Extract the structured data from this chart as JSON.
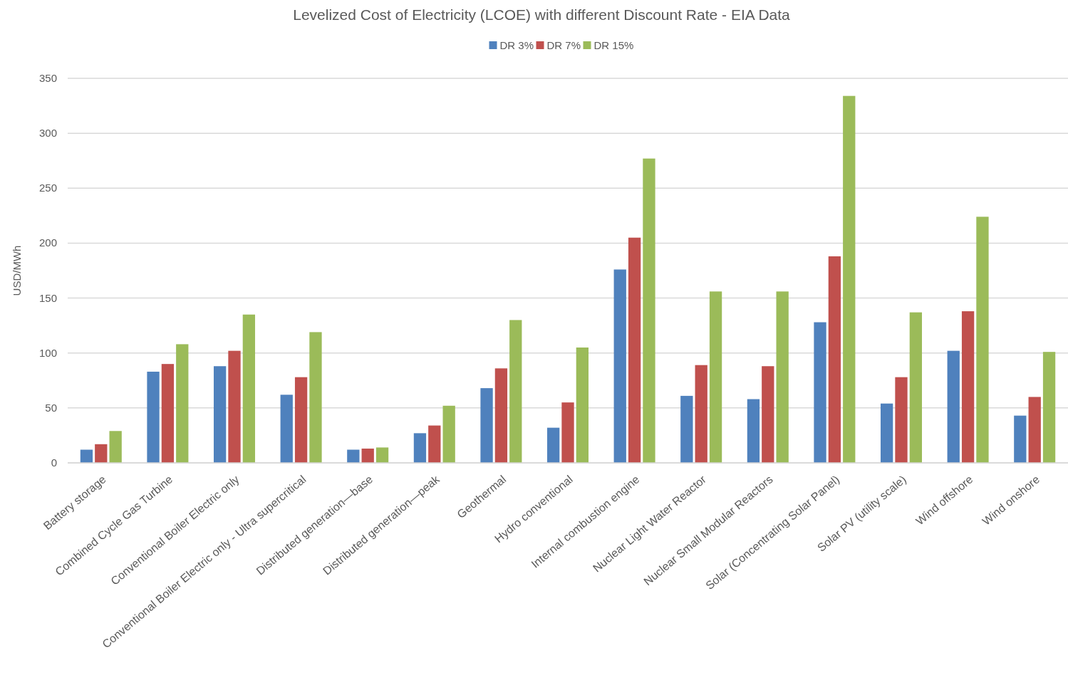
{
  "chart_data": {
    "type": "bar",
    "title": "Levelized Cost of Electricity (LCOE) with different Discount Rate - EIA Data",
    "ylabel": "USD/MWh",
    "categories": [
      "Battery storage",
      "Combined Cycle Gas Turbine",
      "Conventional Boiler Electric only",
      "Conventional Boiler Electric only - Ultra supercritical",
      "Distributed generation—base",
      "Distributed generation—peak",
      "Geothermal",
      "Hydro conventional",
      "Internal combustion engine",
      "Nuclear Light Water Reactor",
      "Nuclear Small Modular Reactors",
      "Solar (Concentrating Solar Panel)",
      "Solar PV (utility scale)",
      "Wind offshore",
      "Wind onshore"
    ],
    "series": [
      {
        "name": "DR 3%",
        "color": "#4f81bd",
        "values": [
          12,
          83,
          88,
          62,
          12,
          27,
          68,
          32,
          176,
          61,
          58,
          128,
          54,
          102,
          43
        ]
      },
      {
        "name": "DR 7%",
        "color": "#c0504d",
        "values": [
          17,
          90,
          102,
          78,
          13,
          34,
          86,
          55,
          205,
          89,
          88,
          188,
          78,
          138,
          60
        ]
      },
      {
        "name": "DR 15%",
        "color": "#9bbb59",
        "values": [
          29,
          108,
          135,
          119,
          14,
          52,
          130,
          105,
          277,
          156,
          156,
          334,
          137,
          224,
          101
        ]
      }
    ],
    "ylim": [
      0,
      350
    ],
    "yticks": [
      0,
      50,
      100,
      150,
      200,
      250,
      300,
      350
    ],
    "grid": "y",
    "legend": "top"
  }
}
